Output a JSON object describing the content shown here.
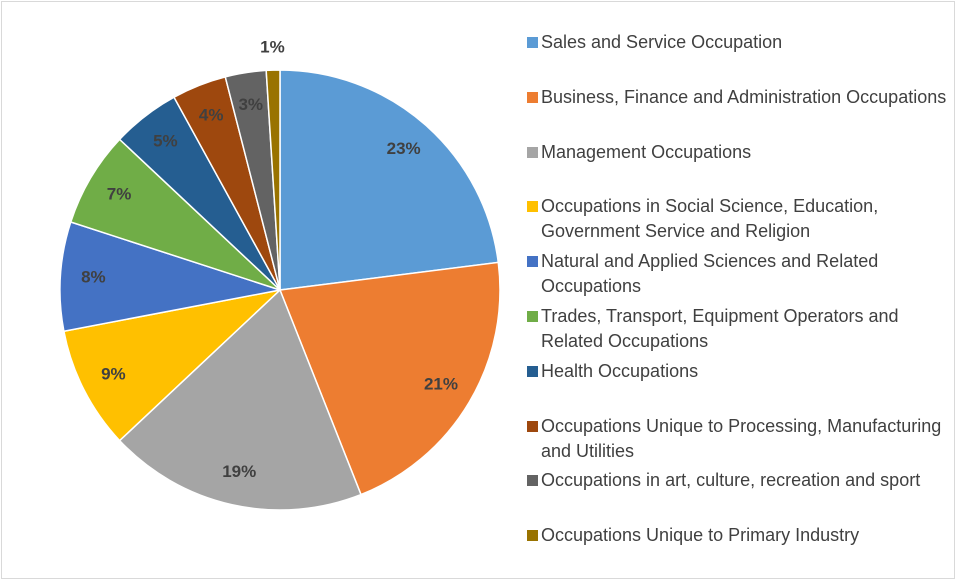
{
  "chart_data": {
    "type": "pie",
    "categories": [
      "Sales and Service Occupation",
      "Business, Finance and Administration Occupations",
      "Management Occupations",
      "Occupations in Social Science, Education, Government Service and Religion",
      "Natural and Applied Sciences and Related Occupations",
      "Trades, Transport, Equipment Operators and Related Occupations",
      "Health Occupations",
      "Occupations Unique to Processing, Manufacturing and Utilities",
      "Occupations in art, culture, recreation and sport",
      "Occupations Unique to Primary Industry"
    ],
    "values": [
      23,
      21,
      19,
      9,
      8,
      7,
      5,
      4,
      3,
      1
    ],
    "value_labels": [
      "23%",
      "21%",
      "19%",
      "9%",
      "8%",
      "7%",
      "5%",
      "4%",
      "3%",
      "1%"
    ],
    "colors": [
      "#5b9bd5",
      "#ed7d31",
      "#a5a5a5",
      "#ffc000",
      "#4472c4",
      "#70ad47",
      "#255e91",
      "#9e480e",
      "#636363",
      "#997300"
    ],
    "legend": "right"
  }
}
